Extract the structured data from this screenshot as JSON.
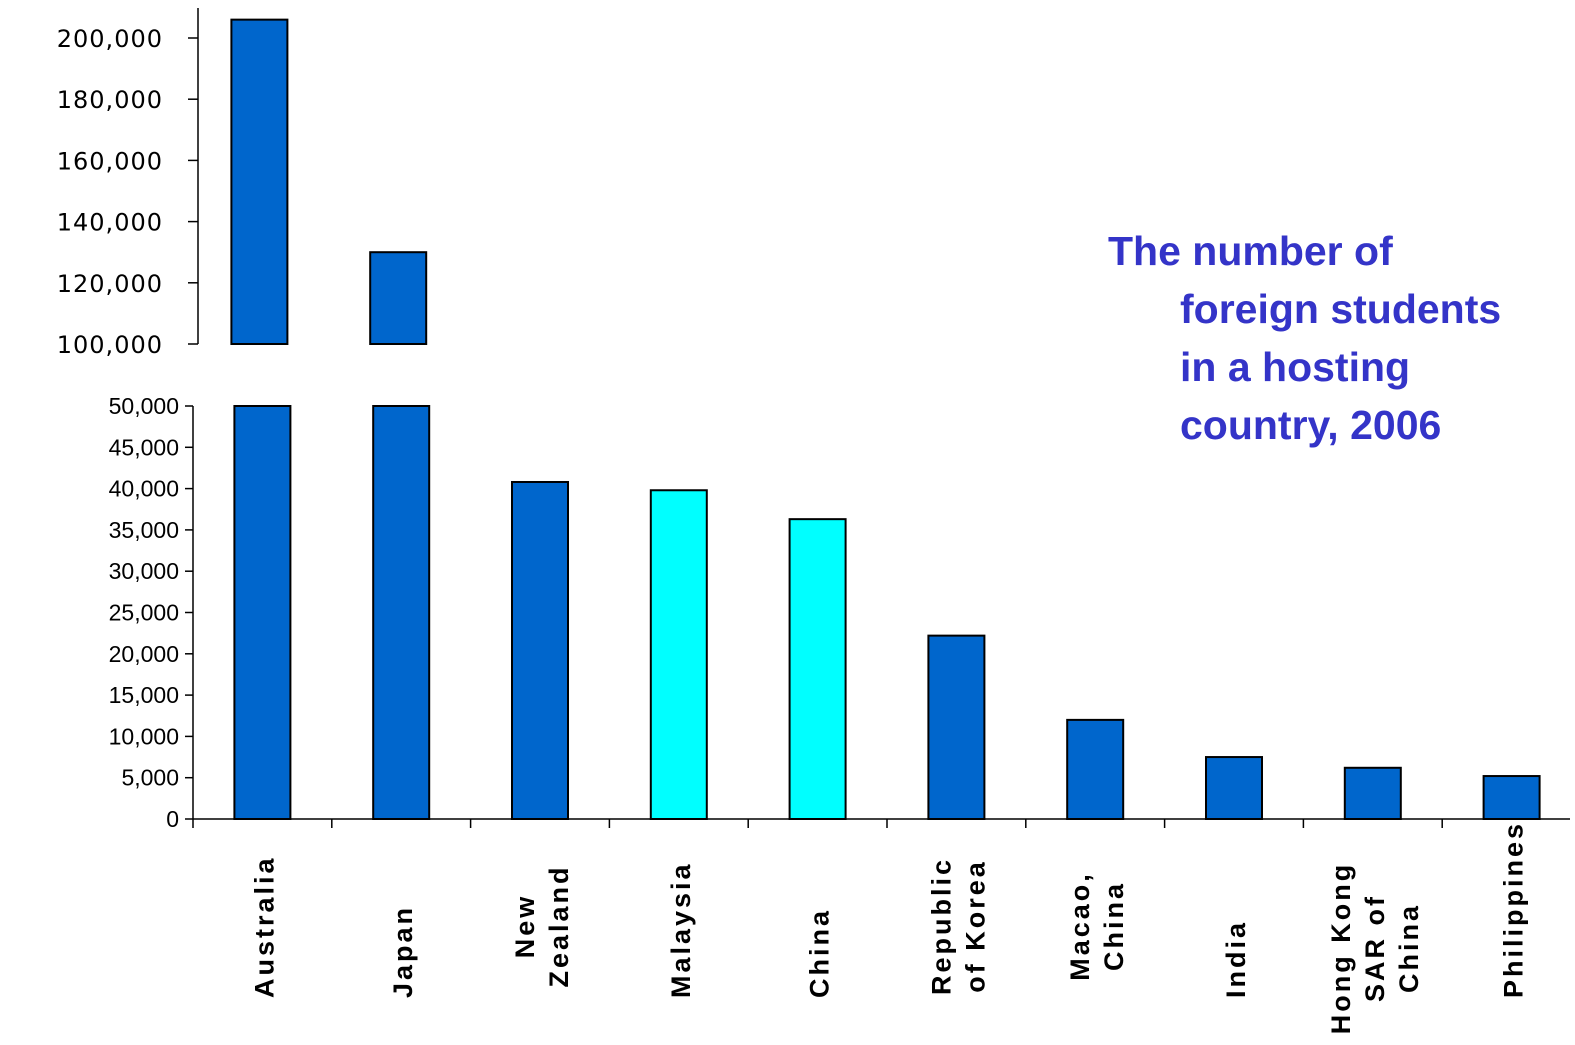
{
  "chart_data": {
    "type": "bar",
    "title": [
      "The number of",
      "foreign students",
      "in a hosting",
      "country, 2006"
    ],
    "xlabel": "",
    "ylabel": "",
    "categories": [
      [
        "Australia"
      ],
      [
        "Japan"
      ],
      [
        "New",
        "Zealand"
      ],
      [
        "Malaysia"
      ],
      [
        "China"
      ],
      [
        "Republic",
        "of Korea"
      ],
      [
        "Macao,",
        "China"
      ],
      [
        "India"
      ],
      [
        "Hong Kong",
        "SAR of",
        "China"
      ],
      [
        "Philippines"
      ]
    ],
    "values": [
      206000,
      130000,
      40800,
      39800,
      36300,
      22200,
      12000,
      7500,
      6200,
      5200
    ],
    "highlighted": [
      false,
      false,
      false,
      true,
      true,
      false,
      false,
      false,
      false,
      false
    ],
    "colors": {
      "default": "#0066cc",
      "highlight": "#00ffff",
      "title": "#3434c8"
    },
    "axis_break": true,
    "lower_axis": {
      "ylim": [
        0,
        50000
      ],
      "ticks": [
        "0",
        "5,000",
        "10,000",
        "15,000",
        "20,000",
        "25,000",
        "30,000",
        "35,000",
        "40,000",
        "45,000",
        "50,000"
      ]
    },
    "upper_axis": {
      "ylim": [
        100000,
        200000
      ],
      "ticks": [
        "100,000",
        "120,000",
        "140,000",
        "160,000",
        "180,000",
        "200,000"
      ]
    },
    "grid": false,
    "legend": "none"
  }
}
